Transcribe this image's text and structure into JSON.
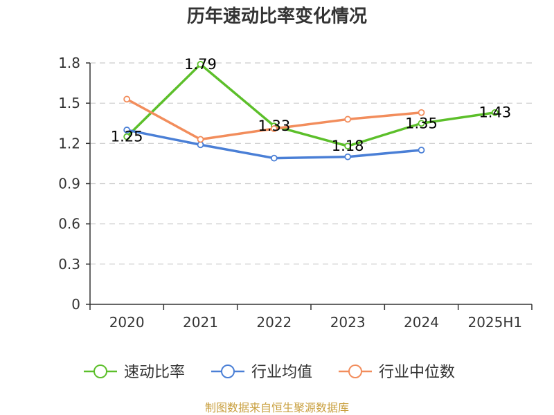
{
  "chart_data": {
    "type": "line",
    "title": "历年速动比率变化情况",
    "categories": [
      "2020",
      "2021",
      "2022",
      "2023",
      "2024",
      "2025H1"
    ],
    "y_ticks": [
      "0",
      "0.3",
      "0.6",
      "0.9",
      "1.2",
      "1.5",
      "1.8"
    ],
    "ylim": [
      0,
      1.8
    ],
    "grid": true,
    "legend_position": "bottom",
    "series": [
      {
        "name": "速动比率",
        "color": "#5cbf2a",
        "values": [
          1.25,
          1.79,
          1.33,
          1.18,
          1.35,
          1.43
        ],
        "labels": [
          "1.25",
          "1.79",
          "1.33",
          "1.18",
          "1.35",
          "1.43"
        ],
        "show_labels": true
      },
      {
        "name": "行业均值",
        "color": "#4a7fd6",
        "values": [
          1.3,
          1.19,
          1.09,
          1.1,
          1.15,
          null
        ],
        "show_labels": false
      },
      {
        "name": "行业中位数",
        "color": "#f28d5c",
        "values": [
          1.53,
          1.23,
          1.31,
          1.38,
          1.43,
          null
        ],
        "show_labels": false
      }
    ]
  },
  "footer": {
    "source": "制图数据来自恒生聚源数据库",
    "source_color": "#c9a040"
  },
  "colors": {
    "axis": "#333333",
    "grid": "#cccccc",
    "marker_fill": "#ffffff"
  }
}
